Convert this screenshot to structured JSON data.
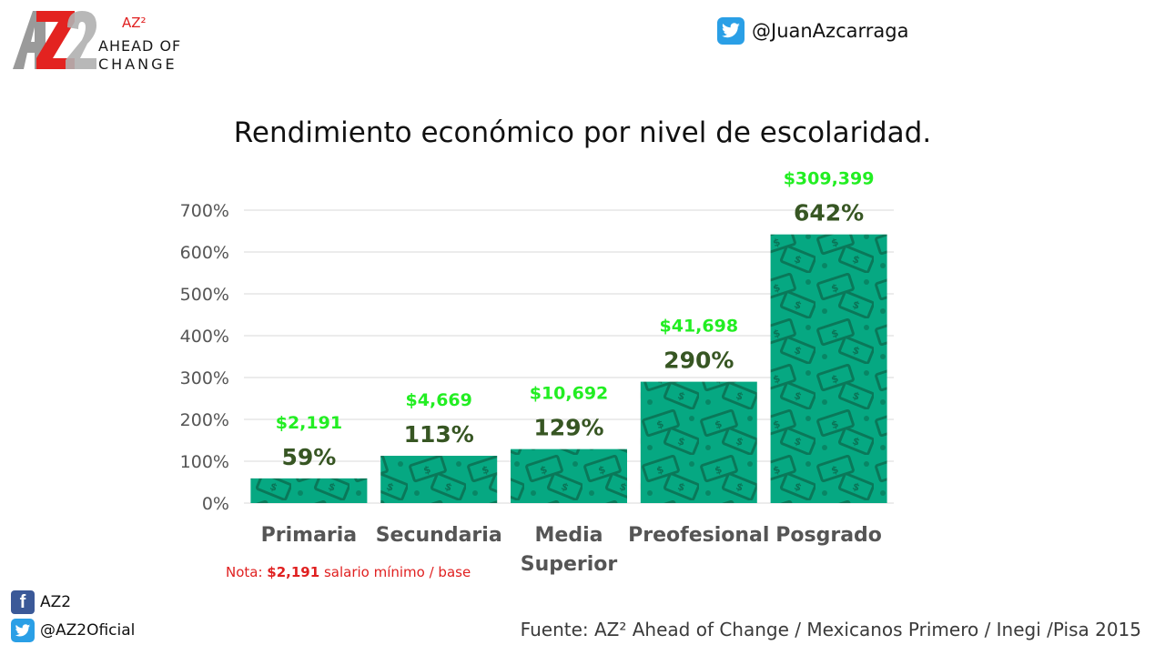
{
  "header": {
    "logo": {
      "badge": "AZ²",
      "line1": "AHEAD OF",
      "line2": "CHANGE",
      "mark_text": "AZ2",
      "icon": "az2-logo-mark"
    },
    "twitter_handle": "@JuanAzcarraga",
    "twitter_icon": "twitter-bird-icon"
  },
  "colors": {
    "bar": "#06a882",
    "bar_pattern": "#0a6f52",
    "value_label": "#22ee22",
    "percent_label": "#375623",
    "category_label": "#555555",
    "axis_text": "#555555",
    "grid": "#d9d9d9",
    "note_red": "#e02020"
  },
  "chart_data": {
    "type": "bar",
    "title": "Rendimiento económico por nivel de escolaridad.",
    "categories": [
      "Primaria",
      "Secundaria",
      "Media Superior",
      "Preofesional",
      "Posgrado"
    ],
    "category_lines": [
      [
        "Primaria"
      ],
      [
        "Secundaria"
      ],
      [
        "Media",
        "Superior"
      ],
      [
        "Preofesional"
      ],
      [
        "Posgrado"
      ]
    ],
    "values": [
      59,
      113,
      129,
      290,
      642
    ],
    "value_labels": [
      "59%",
      "113%",
      "129%",
      "290%",
      "642%"
    ],
    "amounts": [
      "$2,191",
      "$4,669",
      "$10,692",
      "$41,698",
      "$309,399"
    ],
    "ylim": [
      0,
      700
    ],
    "yticks": [
      0,
      100,
      200,
      300,
      400,
      500,
      600,
      700
    ],
    "ytick_labels": [
      "0%",
      "100%",
      "200%",
      "300%",
      "400%",
      "500%",
      "600%",
      "700%"
    ],
    "xlabel": "",
    "ylabel": "",
    "grid": true,
    "legend": "none"
  },
  "note": {
    "prefix": "Nota: ",
    "amount": "$2,191",
    "suffix": " salario mínimo / base"
  },
  "footer": {
    "facebook_label": "AZ2",
    "facebook_icon": "facebook-icon",
    "twitter_label": "@AZ2Oficial",
    "twitter_icon": "twitter-bird-icon",
    "source": "Fuente: AZ² Ahead of Change / Mexicanos Primero / Inegi /Pisa 2015"
  }
}
